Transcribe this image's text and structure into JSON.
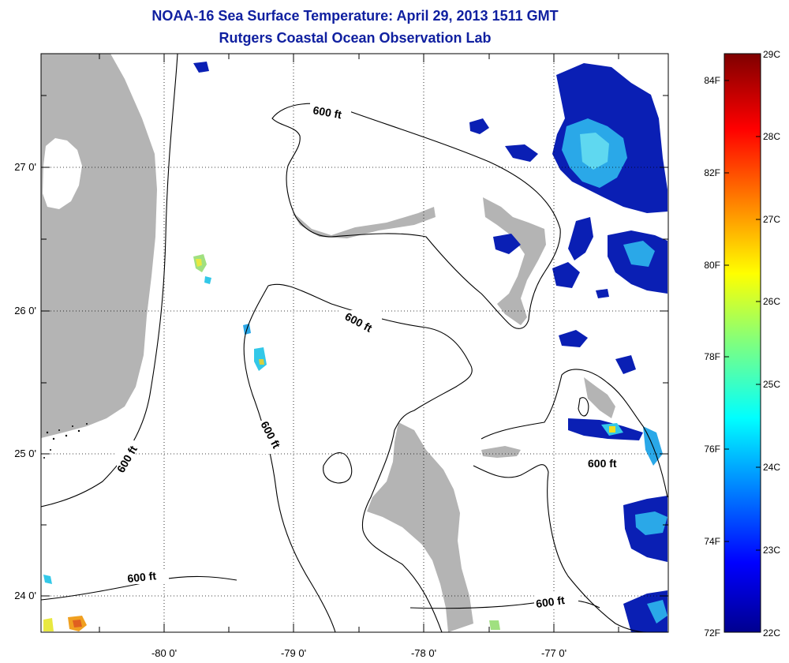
{
  "title": "NOAA-16 Sea Surface Temperature:  April 29, 2013 1511 GMT",
  "subtitle": "Rutgers Coastal Ocean Observation Lab",
  "lon_ticks": [
    "-80 0'",
    "-79 0'",
    "-78 0'",
    "-77 0'"
  ],
  "lat_ticks": [
    "27 0'",
    "26 0'",
    "25 0'",
    "24 0'"
  ],
  "contour_labels": [
    "600 ft",
    "600 ft",
    "600 ft",
    "600 ft",
    "600 ft",
    "600 ft",
    "600 ft"
  ],
  "colorbar": {
    "celsius": [
      "29C",
      "28C",
      "27C",
      "26C",
      "25C",
      "24C",
      "23C",
      "22C"
    ],
    "fahrenheit": [
      "84F",
      "82F",
      "80F",
      "78F",
      "76F",
      "74F",
      "72F"
    ]
  },
  "colors": {
    "land": "#b4b4b4",
    "title": "#1020a0",
    "cold": "#0a1fb4",
    "mid": "#33c8e8",
    "warm": "#f0e020"
  }
}
